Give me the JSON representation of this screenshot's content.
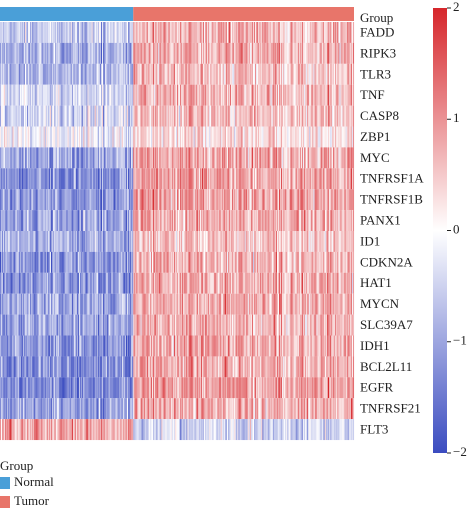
{
  "chart_data": {
    "type": "heatmap",
    "annotation_title": "Group",
    "groups": [
      {
        "name": "Normal",
        "color": "#4a9fd8",
        "column_share": 0.375
      },
      {
        "name": "Tumor",
        "color": "#e8756a",
        "column_share": 0.625
      }
    ],
    "rows": [
      "FADD",
      "RIPK3",
      "TLR3",
      "TNF",
      "CASP8",
      "ZBP1",
      "MYC",
      "TNFRSF1A",
      "TNFRSF1B",
      "PANX1",
      "ID1",
      "CDKN2A",
      "HAT1",
      "MYCN",
      "SLC39A7",
      "IDH1",
      "BCL2L11",
      "EGFR",
      "TNFRSF21",
      "FLT3"
    ],
    "row_mean_normal": [
      -0.6,
      -0.9,
      -0.8,
      -0.5,
      -0.5,
      -0.2,
      -1.0,
      -1.3,
      -1.2,
      -1.0,
      -0.9,
      -1.2,
      -1.2,
      -1.0,
      -1.1,
      -1.2,
      -1.3,
      -1.4,
      -1.1,
      0.9
    ],
    "row_mean_tumor": [
      0.7,
      0.8,
      0.6,
      0.7,
      0.6,
      0.3,
      0.8,
      0.9,
      0.9,
      0.8,
      0.6,
      0.7,
      0.8,
      0.8,
      0.7,
      0.8,
      0.8,
      0.9,
      0.8,
      -0.5
    ],
    "color_scale": {
      "min": -2,
      "max": 2,
      "low": "#3b4cc0",
      "mid": "#ffffff",
      "high": "#d6262b"
    },
    "colorbar_ticks": [
      "2",
      "1",
      "0",
      "−1",
      "−2"
    ],
    "legend": {
      "title": "Group",
      "placement": "bottom-left"
    }
  }
}
